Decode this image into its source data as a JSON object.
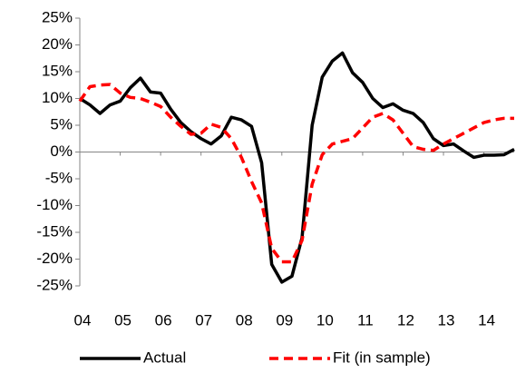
{
  "chart_data": {
    "type": "line",
    "x": [
      4,
      4.25,
      4.5,
      4.75,
      5,
      5.25,
      5.5,
      5.75,
      6,
      6.25,
      6.5,
      6.75,
      7,
      7.25,
      7.5,
      7.75,
      8,
      8.25,
      8.5,
      8.75,
      9,
      9.25,
      9.5,
      9.75,
      10,
      10.25,
      10.5,
      10.75,
      11,
      11.25,
      11.5,
      11.75,
      12,
      12.25,
      12.5,
      12.75,
      13,
      13.25,
      13.5,
      13.75,
      14,
      14.25,
      14.5,
      14.75
    ],
    "series": [
      {
        "name": "Actual",
        "color": "#000000",
        "dash": false,
        "values": [
          10,
          8.8,
          7.2,
          8.8,
          9.5,
          12,
          13.8,
          11.2,
          11,
          8,
          5.5,
          3.8,
          2.5,
          1.5,
          3,
          6.5,
          6,
          4.8,
          -2,
          -21,
          -24.3,
          -23.2,
          -16,
          5,
          14,
          17,
          18.5,
          14.8,
          13,
          10,
          8.3,
          9,
          7.8,
          7.2,
          5.5,
          2.5,
          1.2,
          1.5,
          0.2,
          -1,
          -0.6,
          -0.6,
          -0.5,
          0.5
        ]
      },
      {
        "name": "Fit (in sample)",
        "color": "#ff0000",
        "dash": true,
        "values": [
          9.5,
          12.2,
          12.5,
          12.6,
          11,
          10.2,
          10,
          9.3,
          8.5,
          6.5,
          4.8,
          3.3,
          3.5,
          5.2,
          4.6,
          2.5,
          -1,
          -5.5,
          -9.5,
          -18,
          -20.5,
          -20.5,
          -16.5,
          -6,
          -0.5,
          1.5,
          2,
          2.5,
          4.5,
          6.5,
          7.2,
          6,
          3.5,
          1,
          0.5,
          0.3,
          1.5,
          2.5,
          3.5,
          4.5,
          5.5,
          6,
          6.3,
          6.3
        ]
      }
    ],
    "xlim": [
      4,
      14.75
    ],
    "xticks": [
      {
        "value": 4,
        "label": "04"
      },
      {
        "value": 5,
        "label": "05"
      },
      {
        "value": 6,
        "label": "06"
      },
      {
        "value": 7,
        "label": "07"
      },
      {
        "value": 8,
        "label": "08"
      },
      {
        "value": 9,
        "label": "09"
      },
      {
        "value": 10,
        "label": "10"
      },
      {
        "value": 11,
        "label": "11"
      },
      {
        "value": 12,
        "label": "12"
      },
      {
        "value": 13,
        "label": "13"
      },
      {
        "value": 14,
        "label": "14"
      }
    ],
    "ylim": [
      -25,
      25
    ],
    "yticks": [
      {
        "value": -25,
        "label": "-25%"
      },
      {
        "value": -20,
        "label": "-20%"
      },
      {
        "value": -15,
        "label": "-15%"
      },
      {
        "value": -10,
        "label": "-10%"
      },
      {
        "value": -5,
        "label": "-5%"
      },
      {
        "value": 0,
        "label": "0%"
      },
      {
        "value": 5,
        "label": "5%"
      },
      {
        "value": 10,
        "label": "10%"
      },
      {
        "value": 15,
        "label": "15%"
      },
      {
        "value": 20,
        "label": "20%"
      },
      {
        "value": 25,
        "label": "25%"
      }
    ],
    "legend": "bottom"
  }
}
